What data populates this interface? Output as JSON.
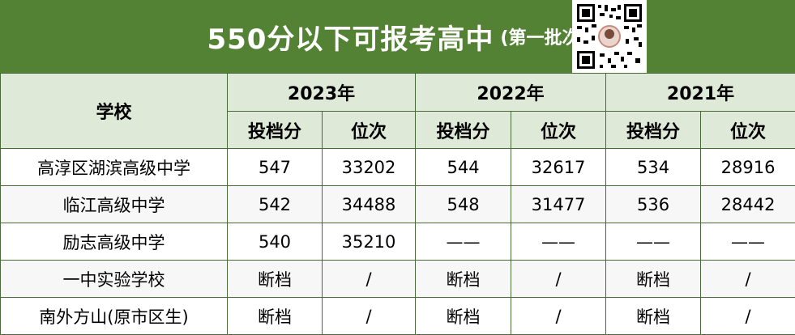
{
  "title": {
    "main": "550分以下可报考高中",
    "sub": "(第一批次)"
  },
  "qr_icon": "qr-code-icon",
  "colors": {
    "header_bg": "#548235",
    "subheader_bg": "#dfe9d7",
    "border": "#4b6a3a"
  },
  "table": {
    "school_header": "学校",
    "years": [
      "2023年",
      "2022年",
      "2021年"
    ],
    "subheaders": [
      "投档分",
      "位次",
      "投档分",
      "位次",
      "投档分",
      "位次"
    ],
    "rows": [
      {
        "name": "高淳区湖滨高级中学",
        "cells": [
          "547",
          "33202",
          "544",
          "32617",
          "534",
          "28916"
        ]
      },
      {
        "name": "临江高级中学",
        "cells": [
          "542",
          "34488",
          "548",
          "31477",
          "536",
          "28442"
        ]
      },
      {
        "name": "励志高级中学",
        "cells": [
          "540",
          "35210",
          "——",
          "——",
          "——",
          "——"
        ]
      },
      {
        "name": "一中实验学校",
        "cells": [
          "断档",
          "/",
          "断档",
          "/",
          "断档",
          "/"
        ]
      },
      {
        "name": "南外方山(原市区生)",
        "cells": [
          "断档",
          "/",
          "断档",
          "/",
          "断档",
          "/"
        ]
      }
    ]
  }
}
